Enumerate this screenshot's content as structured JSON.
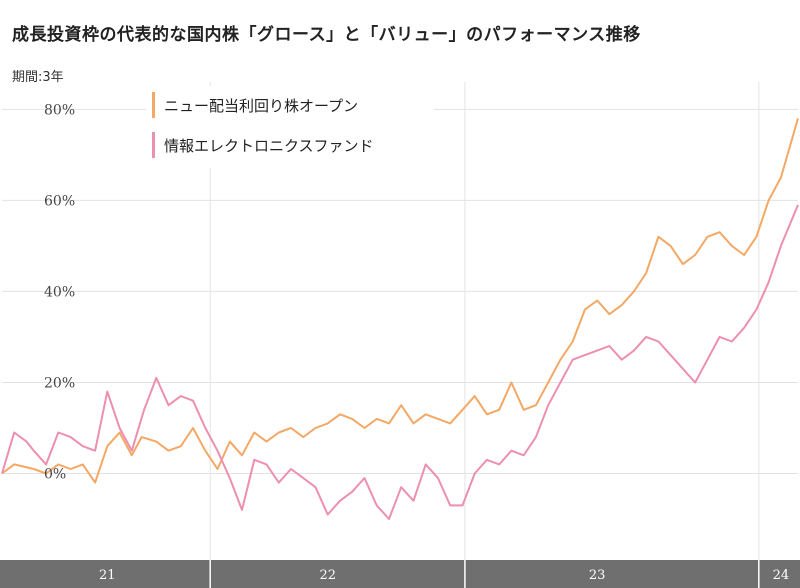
{
  "header": {
    "title": "成長投資枠の代表的な国内株「グロース」と「バリュー」のパフォーマンス推移",
    "period": "期間:3年"
  },
  "colors": {
    "series_orange": "#f3a865",
    "series_pink": "#ec8fb0",
    "grid": "#e3e3e3",
    "axis_band": "#6f6f6f"
  },
  "chart_data": {
    "type": "line",
    "title": "",
    "xlabel": "",
    "ylabel": "",
    "ylim": [
      -19,
      86
    ],
    "yticks": [
      0,
      20,
      40,
      60,
      80
    ],
    "ytick_labels": [
      "0%",
      "20%",
      "40%",
      "60%",
      "80%"
    ],
    "xlim": [
      2020.87,
      2024.12
    ],
    "xtick_labels": [
      {
        "label": "21",
        "x": 2021.3
      },
      {
        "label": "22",
        "x": 2022.2
      },
      {
        "label": "23",
        "x": 2023.3
      },
      {
        "label": "24",
        "x": 2024.05
      }
    ],
    "year_dividers": [
      2021.72,
      2022.76,
      2023.96
    ],
    "legend_position": "top-left",
    "grid": true,
    "series": [
      {
        "name": "ニュー配当利回り株オープン",
        "color": "#f3a865",
        "x": [
          2020.87,
          2020.92,
          2021.0,
          2021.05,
          2021.1,
          2021.15,
          2021.2,
          2021.25,
          2021.3,
          2021.35,
          2021.4,
          2021.44,
          2021.5,
          2021.55,
          2021.6,
          2021.65,
          2021.7,
          2021.75,
          2021.8,
          2021.85,
          2021.9,
          2021.95,
          2022.0,
          2022.05,
          2022.1,
          2022.15,
          2022.2,
          2022.25,
          2022.3,
          2022.35,
          2022.4,
          2022.45,
          2022.5,
          2022.55,
          2022.6,
          2022.65,
          2022.7,
          2022.75,
          2022.8,
          2022.85,
          2022.9,
          2022.95,
          2023.0,
          2023.05,
          2023.1,
          2023.15,
          2023.2,
          2023.25,
          2023.3,
          2023.35,
          2023.4,
          2023.45,
          2023.5,
          2023.55,
          2023.6,
          2023.65,
          2023.7,
          2023.75,
          2023.8,
          2023.85,
          2023.9,
          2023.95,
          2024.0,
          2024.05,
          2024.12
        ],
        "values": [
          0,
          2,
          1,
          0,
          2,
          1,
          2,
          -2,
          6,
          9,
          4,
          8,
          7,
          5,
          6,
          10,
          5,
          1,
          7,
          4,
          9,
          7,
          9,
          10,
          8,
          10,
          11,
          13,
          12,
          10,
          12,
          11,
          15,
          11,
          13,
          12,
          11,
          14,
          17,
          13,
          14,
          20,
          14,
          15,
          20,
          25,
          29,
          36,
          38,
          35,
          37,
          40,
          44,
          52,
          50,
          46,
          48,
          52,
          53,
          50,
          48,
          52,
          60,
          65,
          78
        ]
      },
      {
        "name": "情報エレクトロニクスファンド",
        "color": "#ec8fb0",
        "x": [
          2020.87,
          2020.92,
          2020.97,
          2021.0,
          2021.05,
          2021.1,
          2021.15,
          2021.2,
          2021.25,
          2021.3,
          2021.35,
          2021.4,
          2021.45,
          2021.5,
          2021.55,
          2021.6,
          2021.65,
          2021.7,
          2021.75,
          2021.8,
          2021.85,
          2021.9,
          2021.95,
          2022.0,
          2022.05,
          2022.1,
          2022.15,
          2022.2,
          2022.25,
          2022.3,
          2022.35,
          2022.4,
          2022.45,
          2022.5,
          2022.55,
          2022.6,
          2022.65,
          2022.7,
          2022.75,
          2022.8,
          2022.85,
          2022.9,
          2022.95,
          2023.0,
          2023.05,
          2023.1,
          2023.15,
          2023.2,
          2023.25,
          2023.3,
          2023.35,
          2023.4,
          2023.45,
          2023.5,
          2023.55,
          2023.6,
          2023.65,
          2023.7,
          2023.75,
          2023.8,
          2023.85,
          2023.9,
          2023.95,
          2024.0,
          2024.05,
          2024.12
        ],
        "values": [
          0,
          9,
          7,
          5,
          2,
          9,
          8,
          6,
          5,
          18,
          10,
          5,
          14,
          21,
          15,
          17,
          16,
          10,
          5,
          -1,
          -8,
          3,
          2,
          -2,
          1,
          -1,
          -3,
          -9,
          -6,
          -4,
          -1,
          -7,
          -10,
          -3,
          -6,
          2,
          -1,
          -7,
          -7,
          0,
          3,
          2,
          5,
          4,
          8,
          15,
          20,
          25,
          26,
          27,
          28,
          25,
          27,
          30,
          29,
          26,
          23,
          20,
          25,
          30,
          29,
          32,
          36,
          42,
          50,
          59
        ]
      }
    ]
  }
}
